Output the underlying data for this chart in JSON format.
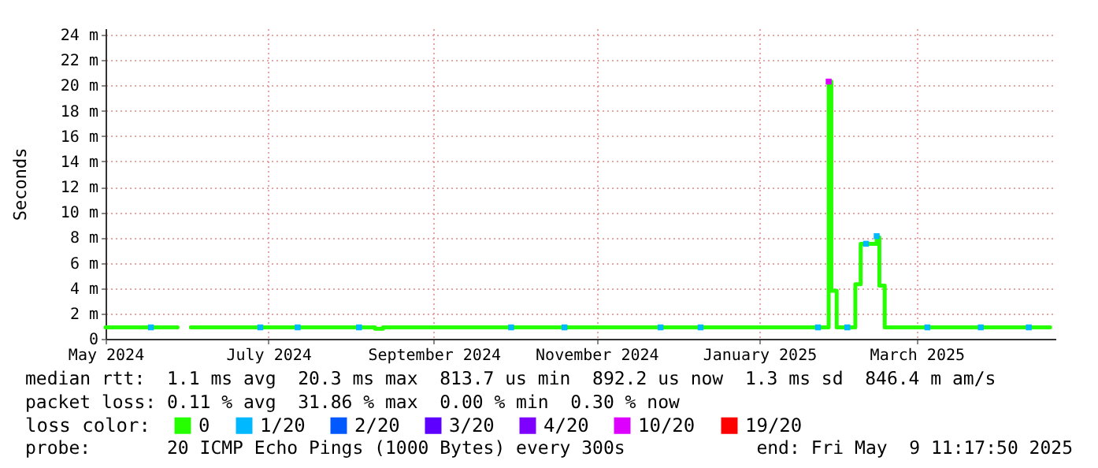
{
  "chart_data": {
    "type": "step",
    "ylabel": "Seconds",
    "legend_title": "loss color:",
    "legend": "bottom",
    "grid": true,
    "marker": "square",
    "xlim": [
      "2024-05-01",
      "2025-04-22"
    ],
    "xticks": [
      {
        "value": "2024-05-01",
        "label": "May 2024"
      },
      {
        "value": "2024-07-01",
        "label": "July 2024"
      },
      {
        "value": "2024-09-01",
        "label": "September 2024"
      },
      {
        "value": "2024-11-01",
        "label": "November 2024"
      },
      {
        "value": "2025-01-01",
        "label": "January 2025"
      },
      {
        "value": "2025-03-01",
        "label": "March 2025"
      }
    ],
    "ylim": [
      0,
      24.5
    ],
    "yticks": [
      0,
      {
        "value": 2,
        "label": "2 m"
      },
      {
        "value": 4,
        "label": "4 m"
      },
      {
        "value": 6,
        "label": "6 m"
      },
      {
        "value": 8,
        "label": "8 m"
      },
      {
        "value": 10,
        "label": "10 m"
      },
      {
        "value": 12,
        "label": "12 m"
      },
      {
        "value": 14,
        "label": "14 m"
      },
      {
        "value": 16,
        "label": "16 m"
      },
      {
        "value": 18,
        "label": "18 m"
      },
      {
        "value": 20,
        "label": "20 m"
      },
      {
        "value": 22,
        "label": "22 m"
      },
      {
        "value": 24,
        "label": "24 m"
      }
    ],
    "series": [
      {
        "name": "0",
        "color": "#26ff00",
        "marker": "none",
        "x": [
          "2024-05-01",
          "2024-05-28",
          "2024-05-30",
          "2024-06-02",
          "2024-06-20",
          "2024-07-01",
          "2024-08-10",
          "2024-08-13",
          "2024-09-01",
          "2024-10-01",
          "2024-10-03",
          "2024-11-01",
          "2025-01-01",
          "2025-01-27",
          "2025-01-28",
          "2025-01-30",
          "2025-02-06",
          "2025-02-08",
          "2025-02-14",
          "2025-02-15",
          "2025-02-17",
          "2025-03-15",
          "2025-04-20"
        ],
        "values": [
          0.9,
          0.9,
          null,
          0.9,
          0.9,
          0.9,
          0.8,
          0.9,
          0.9,
          0.9,
          0.9,
          0.9,
          0.9,
          20.3,
          3.8,
          0.9,
          4.3,
          7.5,
          8.0,
          4.2,
          0.9,
          0.9,
          0.9
        ]
      },
      {
        "name": "1/20",
        "color": "#00b8ff",
        "type": "scatter",
        "x": [
          "2024-05-18",
          "2024-06-28",
          "2024-07-12",
          "2024-08-04",
          "2024-09-30",
          "2024-10-20",
          "2024-11-25",
          "2024-12-10",
          "2025-01-23",
          "2025-02-03",
          "2025-02-10",
          "2025-02-14",
          "2025-03-05",
          "2025-03-25",
          "2025-04-12"
        ],
        "values": [
          0.9,
          0.9,
          0.9,
          0.9,
          0.9,
          0.9,
          0.9,
          0.9,
          0.9,
          0.9,
          7.5,
          8.1,
          0.9,
          0.9,
          0.9
        ]
      },
      {
        "name": "2/20",
        "color": "#0059ff",
        "type": "scatter"
      },
      {
        "name": "3/20",
        "color": "#5e00ff",
        "type": "scatter"
      },
      {
        "name": "4/20",
        "color": "#7e00ff",
        "type": "scatter"
      },
      {
        "name": "10/20",
        "color": "#dd00ff",
        "type": "scatter",
        "x": [
          "2025-01-27"
        ],
        "values": [
          20.3
        ]
      },
      {
        "name": "19/20",
        "color": "#ff0000",
        "type": "scatter"
      }
    ],
    "annotations": [
      "median rtt:  1.1 ms avg  20.3 ms max  813.7 us min  892.2 us now  1.3 ms sd  846.4 m am/s",
      "packet loss: 0.11 % avg  31.86 % max  0.00 % min  0.30 % now",
      "probe:       20 ICMP Echo Pings (1000 Bytes) every 300s",
      "end: Fri May  9 11:17:50 2025"
    ]
  }
}
